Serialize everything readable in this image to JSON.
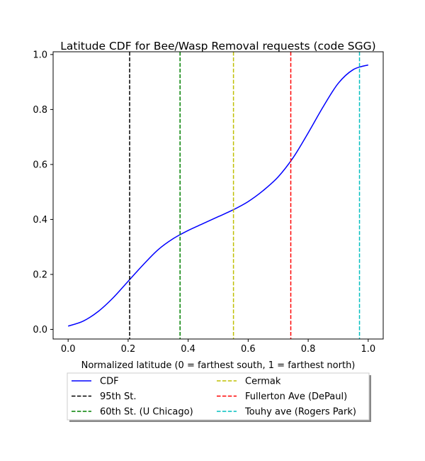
{
  "chart_data": {
    "type": "line",
    "title": "Latitude CDF for Bee/Wasp Removal  requests (code SGG)",
    "xlabel": "Normalized latitude (0 = farthest south, 1 = farthest north)",
    "ylabel": "",
    "xlim": [
      -0.05,
      1.05
    ],
    "ylim": [
      -0.035,
      1.01
    ],
    "x_ticks": [
      0.0,
      0.2,
      0.4,
      0.6,
      0.8,
      1.0
    ],
    "x_tick_labels": [
      "0.0",
      "0.2",
      "0.4",
      "0.6",
      "0.8",
      "1.0"
    ],
    "y_ticks": [
      0.0,
      0.2,
      0.4,
      0.6,
      0.8,
      1.0
    ],
    "y_tick_labels": [
      "0.0",
      "0.2",
      "0.4",
      "0.6",
      "0.8",
      "1.0"
    ],
    "grid": false,
    "legend_position": "below plot, two columns, with shadow",
    "series": [
      {
        "name": "CDF",
        "color": "#0000ff",
        "style": "solid",
        "x": [
          0.0,
          0.05,
          0.1,
          0.15,
          0.2,
          0.25,
          0.3,
          0.35,
          0.4,
          0.45,
          0.5,
          0.55,
          0.6,
          0.65,
          0.7,
          0.75,
          0.8,
          0.85,
          0.9,
          0.95,
          1.0
        ],
        "y": [
          0.012,
          0.03,
          0.065,
          0.115,
          0.175,
          0.235,
          0.29,
          0.33,
          0.36,
          0.385,
          0.41,
          0.435,
          0.465,
          0.505,
          0.555,
          0.625,
          0.715,
          0.81,
          0.895,
          0.945,
          0.962
        ]
      }
    ],
    "vlines": [
      {
        "name": "95th St.",
        "x": 0.205,
        "color": "#000000"
      },
      {
        "name": "60th St. (U Chicago)",
        "x": 0.373,
        "color": "#008000"
      },
      {
        "name": "Cermak",
        "x": 0.551,
        "color": "#bfbf00"
      },
      {
        "name": "Fullerton Ave (DePaul)",
        "x": 0.742,
        "color": "#ff0000"
      },
      {
        "name": "Touhy ave (Rogers Park)",
        "x": 0.971,
        "color": "#00bfbf"
      }
    ],
    "legend": [
      {
        "label": "CDF",
        "color": "#0000ff",
        "style": "solid"
      },
      {
        "label": "95th St.",
        "color": "#000000",
        "style": "dashed"
      },
      {
        "label": "60th St. (U Chicago)",
        "color": "#008000",
        "style": "dashed"
      },
      {
        "label": "Cermak",
        "color": "#bfbf00",
        "style": "dashed"
      },
      {
        "label": "Fullerton Ave (DePaul)",
        "color": "#ff0000",
        "style": "dashed"
      },
      {
        "label": "Touhy ave (Rogers Park)",
        "color": "#00bfbf",
        "style": "dashed"
      }
    ]
  }
}
